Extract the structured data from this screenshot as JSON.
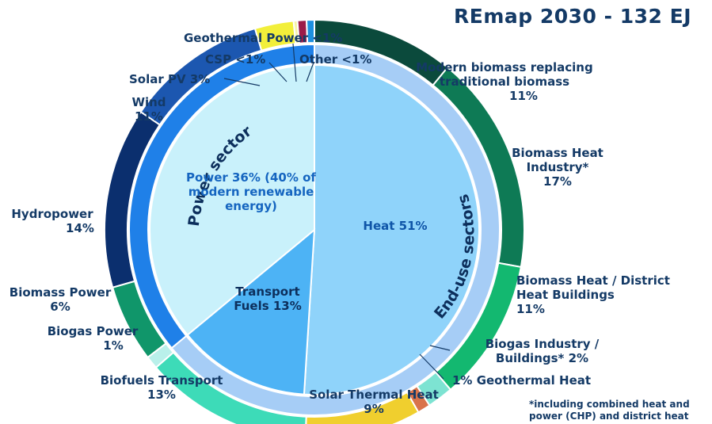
{
  "chart_data": {
    "type": "pie",
    "title": "REmap 2030 - 132 EJ",
    "footnote": "*including combined heat and power (CHP) and district heat",
    "middle_ring": {
      "labels": [
        "End-use sectors",
        "Power sector"
      ],
      "values": [
        64,
        36
      ]
    },
    "inner_pie": {
      "slices": [
        {
          "label": "Heat 51%",
          "value": 51
        },
        {
          "label": "Transport Fuels 13%",
          "value": 13
        },
        {
          "label": "Power 36% (40% of modern renewable energy)",
          "value": 36
        }
      ]
    },
    "outer_ring": {
      "slices": [
        {
          "name": "Modern biomass replacing traditional biomass",
          "percent_label": "11%",
          "value": 11
        },
        {
          "name": "Biomass Heat Industry*",
          "percent_label": "17%",
          "value": 17
        },
        {
          "name": "Biomass Heat / District Heat Buildings",
          "percent_label": "11%",
          "value": 11
        },
        {
          "name": "Biogas Industry / Buildings* 2%",
          "percent_label": "",
          "value": 2
        },
        {
          "name": "1% Geothermal Heat",
          "percent_label": "",
          "value": 1
        },
        {
          "name": "Solar Thermal Heat",
          "percent_label": "9%",
          "value": 9
        },
        {
          "name": "Biofuels Transport",
          "percent_label": "13%",
          "value": 13
        },
        {
          "name": "Biogas Power",
          "percent_label": "1%",
          "value": 1
        },
        {
          "name": "Biomass Power",
          "percent_label": "6%",
          "value": 6
        },
        {
          "name": "Hydropower",
          "percent_label": "14%",
          "value": 14
        },
        {
          "name": "Wind",
          "percent_label": "11%",
          "value": 11
        },
        {
          "name": "Solar PV 3%",
          "percent_label": "",
          "value": 3
        },
        {
          "name": "CSP <1%",
          "percent_label": "",
          "value": 0.3
        },
        {
          "name": "Geothermal Power <1%",
          "percent_label": "",
          "value": 0.7
        },
        {
          "name": "Other <1%",
          "percent_label": "",
          "value": 0.6
        }
      ]
    }
  },
  "colors": {
    "outer": [
      "#0b4a3c",
      "#0e7a55",
      "#13b870",
      "#7de3d2",
      "#d9734a",
      "#f0cf2e",
      "#3ddbb8",
      "#b9f0ea",
      "#10966a",
      "#0b2f6e",
      "#1c57b0",
      "#f2ef3a",
      "#f7f3a6",
      "#9b1a4a",
      "#1e8fe0"
    ],
    "power_ring": "#1f80e8",
    "enduse_ring": "#a6cdf6",
    "inner_heat": "#8fd3fa",
    "inner_transport": "#4db3f5",
    "inner_power": "#c9f1fb",
    "text_dark": "#143a66",
    "text_blue": "#1565c0"
  }
}
